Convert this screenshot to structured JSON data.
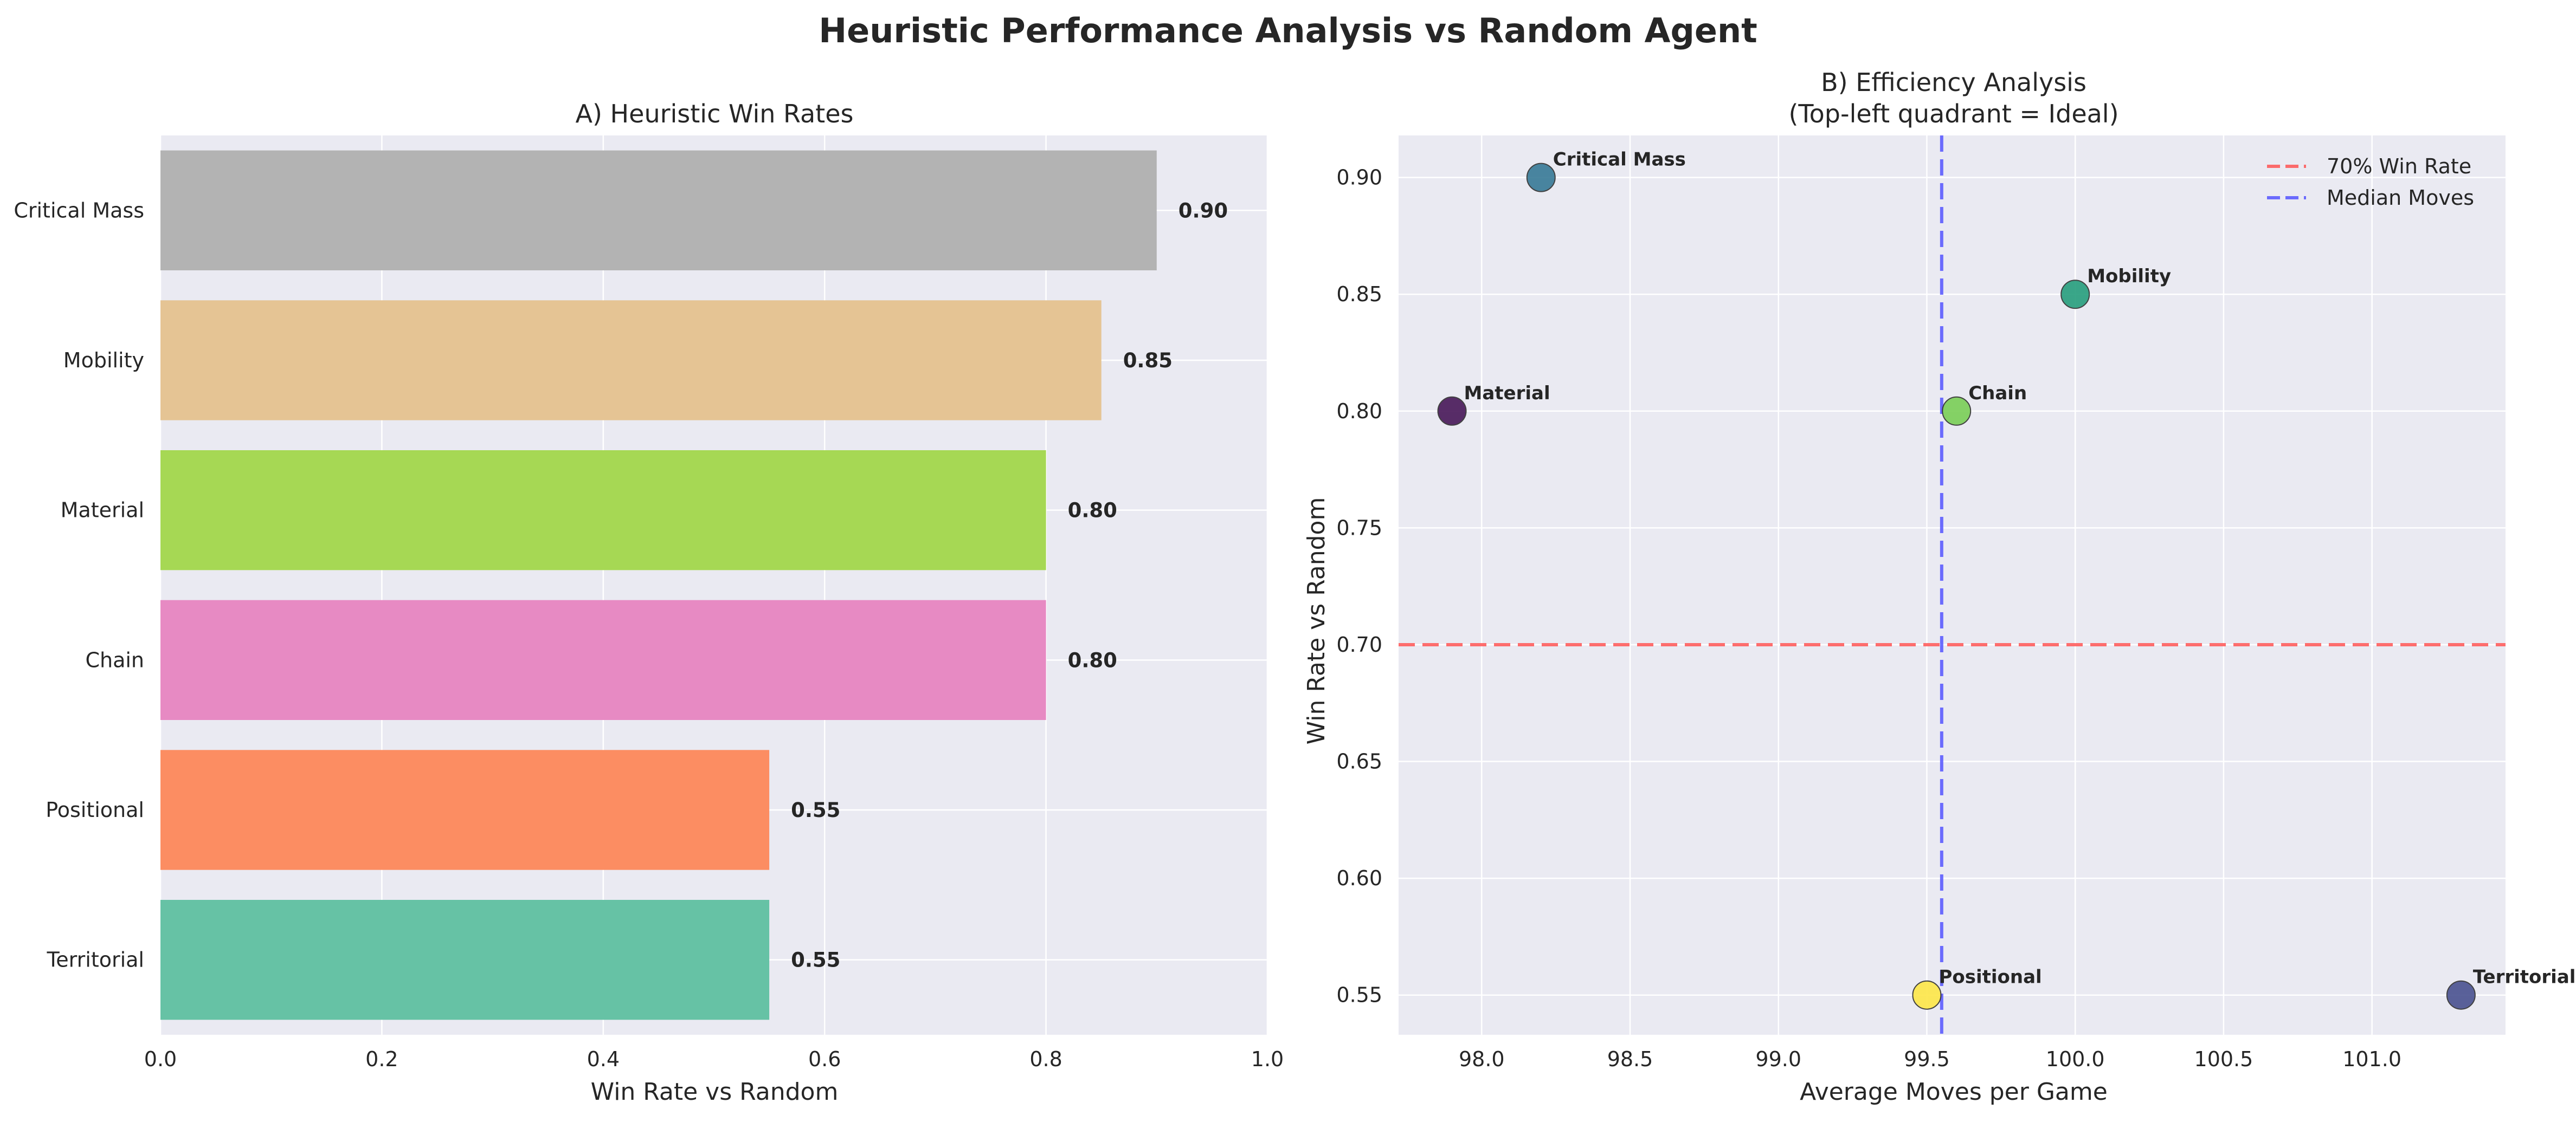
{
  "title": "Heuristic Performance Analysis vs Random Agent",
  "chart_data": [
    {
      "type": "bar",
      "orientation": "horizontal",
      "title": "A) Heuristic Win Rates",
      "xlabel": "Win Rate vs Random",
      "ylabel": "",
      "xlim": [
        0.0,
        1.0
      ],
      "xticks": [
        "0.0",
        "0.2",
        "0.4",
        "0.6",
        "0.8",
        "1.0"
      ],
      "grid": true,
      "categories": [
        "Critical Mass",
        "Mobility",
        "Material",
        "Chain",
        "Positional",
        "Territorial"
      ],
      "values": [
        0.9,
        0.85,
        0.8,
        0.8,
        0.55,
        0.55
      ],
      "value_labels": [
        "0.90",
        "0.85",
        "0.80",
        "0.80",
        "0.55",
        "0.55"
      ],
      "colors": [
        "#b3b3b3",
        "#e5c494",
        "#a6d854",
        "#e78ac3",
        "#fc8d62",
        "#66c2a5"
      ]
    },
    {
      "type": "scatter",
      "title": "B) Efficiency Analysis",
      "subtitle": "(Top-left quadrant = Ideal)",
      "xlabel": "Average Moves per Game",
      "ylabel": "Win Rate vs Random",
      "xlim": [
        97.72,
        101.45
      ],
      "ylim": [
        0.533,
        0.918
      ],
      "xticks": [
        "98.0",
        "98.5",
        "99.0",
        "99.5",
        "100.0",
        "100.5",
        "101.0"
      ],
      "yticks": [
        "0.55",
        "0.60",
        "0.65",
        "0.70",
        "0.75",
        "0.80",
        "0.85",
        "0.90"
      ],
      "grid": true,
      "points": [
        {
          "label": "Critical Mass",
          "x": 98.2,
          "y": 0.9,
          "color": "#3b7c99"
        },
        {
          "label": "Mobility",
          "x": 100.0,
          "y": 0.85,
          "color": "#2aa080"
        },
        {
          "label": "Material",
          "x": 97.9,
          "y": 0.8,
          "color": "#4b1c5c"
        },
        {
          "label": "Chain",
          "x": 99.6,
          "y": 0.8,
          "color": "#7ccf5a"
        },
        {
          "label": "Positional",
          "x": 99.5,
          "y": 0.55,
          "color": "#fde74c"
        },
        {
          "label": "Territorial",
          "x": 101.3,
          "y": 0.55,
          "color": "#4d5592"
        }
      ],
      "reference_lines": [
        {
          "name": "70% Win Rate",
          "orientation": "horizontal",
          "value": 0.7,
          "color": "#ff5555"
        },
        {
          "name": "Median Moves",
          "orientation": "vertical",
          "value": 99.55,
          "color": "#5555ff"
        }
      ],
      "legend": {
        "position": "top-right",
        "entries": [
          "70% Win Rate",
          "Median Moves"
        ]
      }
    }
  ]
}
